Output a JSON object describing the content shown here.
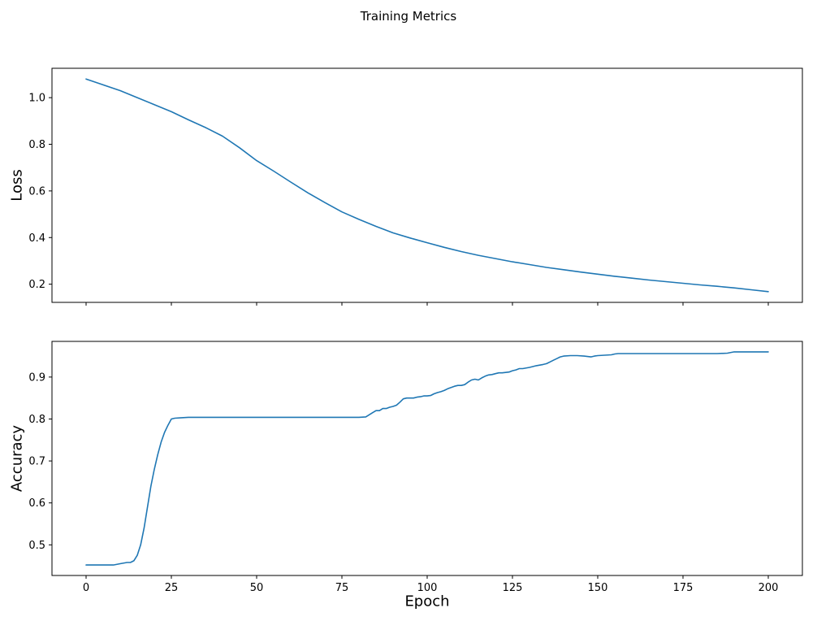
{
  "figure": {
    "title": "Training Metrics",
    "xlabel": "Epoch"
  },
  "chart_data": [
    {
      "type": "line",
      "title": "",
      "xlabel": "",
      "ylabel": "Loss",
      "xlim": [
        -10,
        210
      ],
      "ylim": [
        0.122,
        1.126
      ],
      "xticks": [
        0,
        25,
        50,
        75,
        100,
        125,
        150,
        175,
        200
      ],
      "yticks": [
        0.2,
        0.4,
        0.6,
        0.8,
        1.0
      ],
      "show_x_tick_labels": false,
      "grid": false,
      "legend": "none",
      "series": [
        {
          "name": "loss",
          "color": "#1f77b4",
          "x": [
            0,
            5,
            10,
            15,
            20,
            25,
            30,
            35,
            40,
            45,
            50,
            55,
            60,
            65,
            70,
            75,
            80,
            85,
            90,
            95,
            100,
            105,
            110,
            115,
            120,
            125,
            130,
            135,
            140,
            145,
            150,
            155,
            160,
            165,
            170,
            175,
            180,
            185,
            190,
            195,
            200
          ],
          "y": [
            1.08,
            1.055,
            1.03,
            1.0,
            0.97,
            0.94,
            0.905,
            0.872,
            0.835,
            0.785,
            0.73,
            0.685,
            0.638,
            0.592,
            0.55,
            0.51,
            0.478,
            0.448,
            0.42,
            0.398,
            0.378,
            0.358,
            0.34,
            0.324,
            0.31,
            0.296,
            0.284,
            0.272,
            0.262,
            0.252,
            0.243,
            0.234,
            0.226,
            0.218,
            0.211,
            0.204,
            0.197,
            0.191,
            0.184,
            0.176,
            0.168
          ]
        }
      ]
    },
    {
      "type": "line",
      "title": "",
      "xlabel": "Epoch",
      "ylabel": "Accuracy",
      "xlim": [
        -10,
        210
      ],
      "ylim": [
        0.427,
        0.985
      ],
      "xticks": [
        0,
        25,
        50,
        75,
        100,
        125,
        150,
        175,
        200
      ],
      "yticks": [
        0.5,
        0.6,
        0.7,
        0.8,
        0.9
      ],
      "show_x_tick_labels": true,
      "grid": false,
      "legend": "none",
      "series": [
        {
          "name": "accuracy",
          "color": "#1f77b4",
          "x": [
            0,
            2,
            4,
            6,
            8,
            10,
            12,
            13,
            14,
            15,
            16,
            17,
            18,
            19,
            20,
            21,
            22,
            23,
            24,
            25,
            26,
            28,
            30,
            35,
            40,
            45,
            50,
            55,
            60,
            65,
            70,
            75,
            80,
            82,
            84,
            85,
            86,
            87,
            88,
            89,
            90,
            91,
            92,
            93,
            94,
            95,
            96,
            97,
            98,
            99,
            100,
            101,
            102,
            103,
            104,
            105,
            106,
            107,
            108,
            109,
            110,
            111,
            112,
            113,
            114,
            115,
            116,
            117,
            118,
            119,
            120,
            121,
            122,
            123,
            124,
            125,
            126,
            127,
            128,
            130,
            132,
            134,
            135,
            136,
            137,
            138,
            139,
            140,
            142,
            144,
            146,
            148,
            149,
            150,
            152,
            154,
            155,
            156,
            158,
            160,
            165,
            170,
            175,
            180,
            185,
            188,
            190,
            195,
            200
          ],
          "y": [
            0.452,
            0.452,
            0.452,
            0.452,
            0.452,
            0.455,
            0.458,
            0.458,
            0.462,
            0.475,
            0.5,
            0.54,
            0.59,
            0.64,
            0.68,
            0.715,
            0.745,
            0.768,
            0.785,
            0.8,
            0.802,
            0.803,
            0.804,
            0.804,
            0.804,
            0.804,
            0.804,
            0.804,
            0.804,
            0.804,
            0.804,
            0.804,
            0.804,
            0.805,
            0.815,
            0.82,
            0.82,
            0.825,
            0.825,
            0.828,
            0.83,
            0.833,
            0.84,
            0.848,
            0.85,
            0.85,
            0.85,
            0.852,
            0.853,
            0.855,
            0.855,
            0.856,
            0.86,
            0.863,
            0.865,
            0.868,
            0.872,
            0.875,
            0.878,
            0.88,
            0.88,
            0.882,
            0.888,
            0.893,
            0.895,
            0.893,
            0.898,
            0.902,
            0.905,
            0.906,
            0.908,
            0.91,
            0.91,
            0.911,
            0.912,
            0.915,
            0.917,
            0.92,
            0.92,
            0.923,
            0.927,
            0.93,
            0.932,
            0.936,
            0.94,
            0.944,
            0.948,
            0.95,
            0.951,
            0.951,
            0.95,
            0.948,
            0.95,
            0.951,
            0.952,
            0.953,
            0.955,
            0.956,
            0.956,
            0.956,
            0.956,
            0.956,
            0.956,
            0.956,
            0.956,
            0.957,
            0.96,
            0.96,
            0.96
          ]
        }
      ]
    }
  ]
}
